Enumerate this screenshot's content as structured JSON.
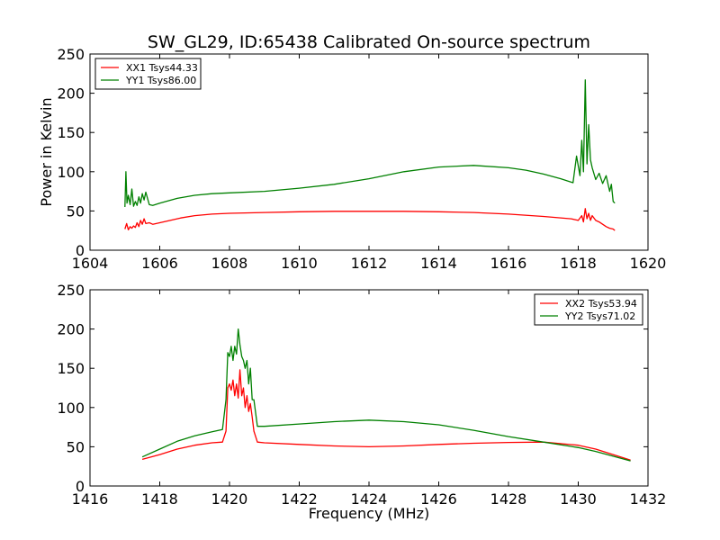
{
  "chart_data": [
    {
      "type": "line",
      "title": "SW_GL29, ID:65438 Calibrated On-source spectrum",
      "xlabel": "",
      "ylabel": "Power in Kelvin",
      "xlim": [
        1604,
        1620
      ],
      "ylim": [
        0,
        250
      ],
      "xticks": [
        1604,
        1606,
        1608,
        1610,
        1612,
        1614,
        1616,
        1618,
        1620
      ],
      "yticks": [
        0,
        50,
        100,
        150,
        200,
        250
      ],
      "grid": false,
      "legend_position": "top-left",
      "series": [
        {
          "name": "XX1 Tsys44.33",
          "color": "#ff0000",
          "x": [
            1605.0,
            1605.05,
            1605.1,
            1605.15,
            1605.2,
            1605.25,
            1605.3,
            1605.35,
            1605.4,
            1605.45,
            1605.5,
            1605.55,
            1605.6,
            1605.7,
            1605.8,
            1606.0,
            1606.3,
            1606.6,
            1607.0,
            1607.5,
            1608.0,
            1609.0,
            1610.0,
            1611.0,
            1612.0,
            1613.0,
            1614.0,
            1615.0,
            1616.0,
            1617.0,
            1617.8,
            1618.0,
            1618.1,
            1618.15,
            1618.2,
            1618.25,
            1618.3,
            1618.35,
            1618.4,
            1618.5,
            1618.6,
            1618.7,
            1618.8,
            1618.9,
            1619.0,
            1619.05
          ],
          "y": [
            27,
            34,
            26,
            30,
            28,
            31,
            29,
            35,
            30,
            38,
            33,
            40,
            34,
            35,
            33,
            35,
            38,
            41,
            44,
            46,
            47,
            48,
            49,
            49.5,
            49.5,
            49.5,
            49,
            48,
            46,
            43,
            40,
            38,
            44,
            36,
            53,
            40,
            47,
            38,
            44,
            38,
            36,
            33,
            30,
            28,
            27,
            25
          ]
        },
        {
          "name": "YY1 Tsys86.00",
          "color": "#008000",
          "x": [
            1605.0,
            1605.03,
            1605.06,
            1605.1,
            1605.15,
            1605.2,
            1605.25,
            1605.3,
            1605.35,
            1605.4,
            1605.45,
            1605.5,
            1605.55,
            1605.6,
            1605.7,
            1605.8,
            1606.0,
            1606.5,
            1607.0,
            1607.5,
            1608.0,
            1609.0,
            1610.0,
            1611.0,
            1612.0,
            1613.0,
            1614.0,
            1615.0,
            1616.0,
            1616.5,
            1617.0,
            1617.5,
            1617.85,
            1617.95,
            1618.05,
            1618.1,
            1618.15,
            1618.2,
            1618.25,
            1618.3,
            1618.35,
            1618.4,
            1618.5,
            1618.6,
            1618.7,
            1618.8,
            1618.9,
            1618.95,
            1619.0,
            1619.05
          ],
          "y": [
            55,
            100,
            60,
            70,
            58,
            78,
            56,
            62,
            57,
            68,
            60,
            72,
            64,
            74,
            58,
            57,
            60,
            66,
            70,
            72,
            73,
            75,
            79,
            84,
            91,
            100,
            106,
            108,
            105,
            102,
            97,
            91,
            86,
            120,
            95,
            140,
            100,
            217,
            110,
            160,
            115,
            105,
            90,
            98,
            85,
            95,
            75,
            84,
            62,
            60
          ]
        }
      ]
    },
    {
      "type": "line",
      "title": "",
      "xlabel": "Frequency (MHz)",
      "ylabel": "",
      "xlim": [
        1416,
        1432
      ],
      "ylim": [
        0,
        250
      ],
      "xticks": [
        1416,
        1418,
        1420,
        1422,
        1424,
        1426,
        1428,
        1430,
        1432
      ],
      "yticks": [
        0,
        50,
        100,
        150,
        200,
        250
      ],
      "grid": false,
      "legend_position": "top-right",
      "series": [
        {
          "name": "XX2 Tsys53.94",
          "color": "#ff0000",
          "x": [
            1417.5,
            1418.0,
            1418.5,
            1419.0,
            1419.5,
            1419.8,
            1419.9,
            1419.95,
            1420.0,
            1420.05,
            1420.1,
            1420.15,
            1420.2,
            1420.25,
            1420.3,
            1420.35,
            1420.4,
            1420.45,
            1420.5,
            1420.55,
            1420.6,
            1420.65,
            1420.7,
            1420.8,
            1421.0,
            1422.0,
            1423.0,
            1424.0,
            1425.0,
            1426.0,
            1427.0,
            1428.0,
            1429.0,
            1430.0,
            1430.5,
            1431.0,
            1431.5
          ],
          "y": [
            34,
            40,
            47,
            52,
            55,
            56,
            70,
            125,
            130,
            122,
            135,
            115,
            130,
            112,
            148,
            115,
            125,
            100,
            115,
            95,
            105,
            88,
            70,
            56,
            55,
            53,
            51,
            50,
            51,
            53,
            54.5,
            55.5,
            56,
            52,
            47,
            40,
            33
          ]
        },
        {
          "name": "YY2 Tsys71.02",
          "color": "#008000",
          "x": [
            1417.5,
            1418.0,
            1418.5,
            1419.0,
            1419.5,
            1419.8,
            1419.9,
            1419.95,
            1420.0,
            1420.05,
            1420.1,
            1420.15,
            1420.2,
            1420.25,
            1420.3,
            1420.35,
            1420.4,
            1420.45,
            1420.5,
            1420.55,
            1420.6,
            1420.65,
            1420.7,
            1420.8,
            1421.0,
            1422.0,
            1423.0,
            1424.0,
            1425.0,
            1426.0,
            1427.0,
            1428.0,
            1429.0,
            1430.0,
            1430.5,
            1431.0,
            1431.5
          ],
          "y": [
            37,
            47,
            57,
            64,
            69,
            72,
            110,
            170,
            165,
            178,
            160,
            178,
            168,
            200,
            180,
            165,
            160,
            150,
            160,
            130,
            150,
            110,
            110,
            76,
            76,
            79,
            82,
            84,
            82,
            78,
            71,
            63,
            56,
            49,
            44,
            38,
            32
          ]
        }
      ]
    }
  ]
}
